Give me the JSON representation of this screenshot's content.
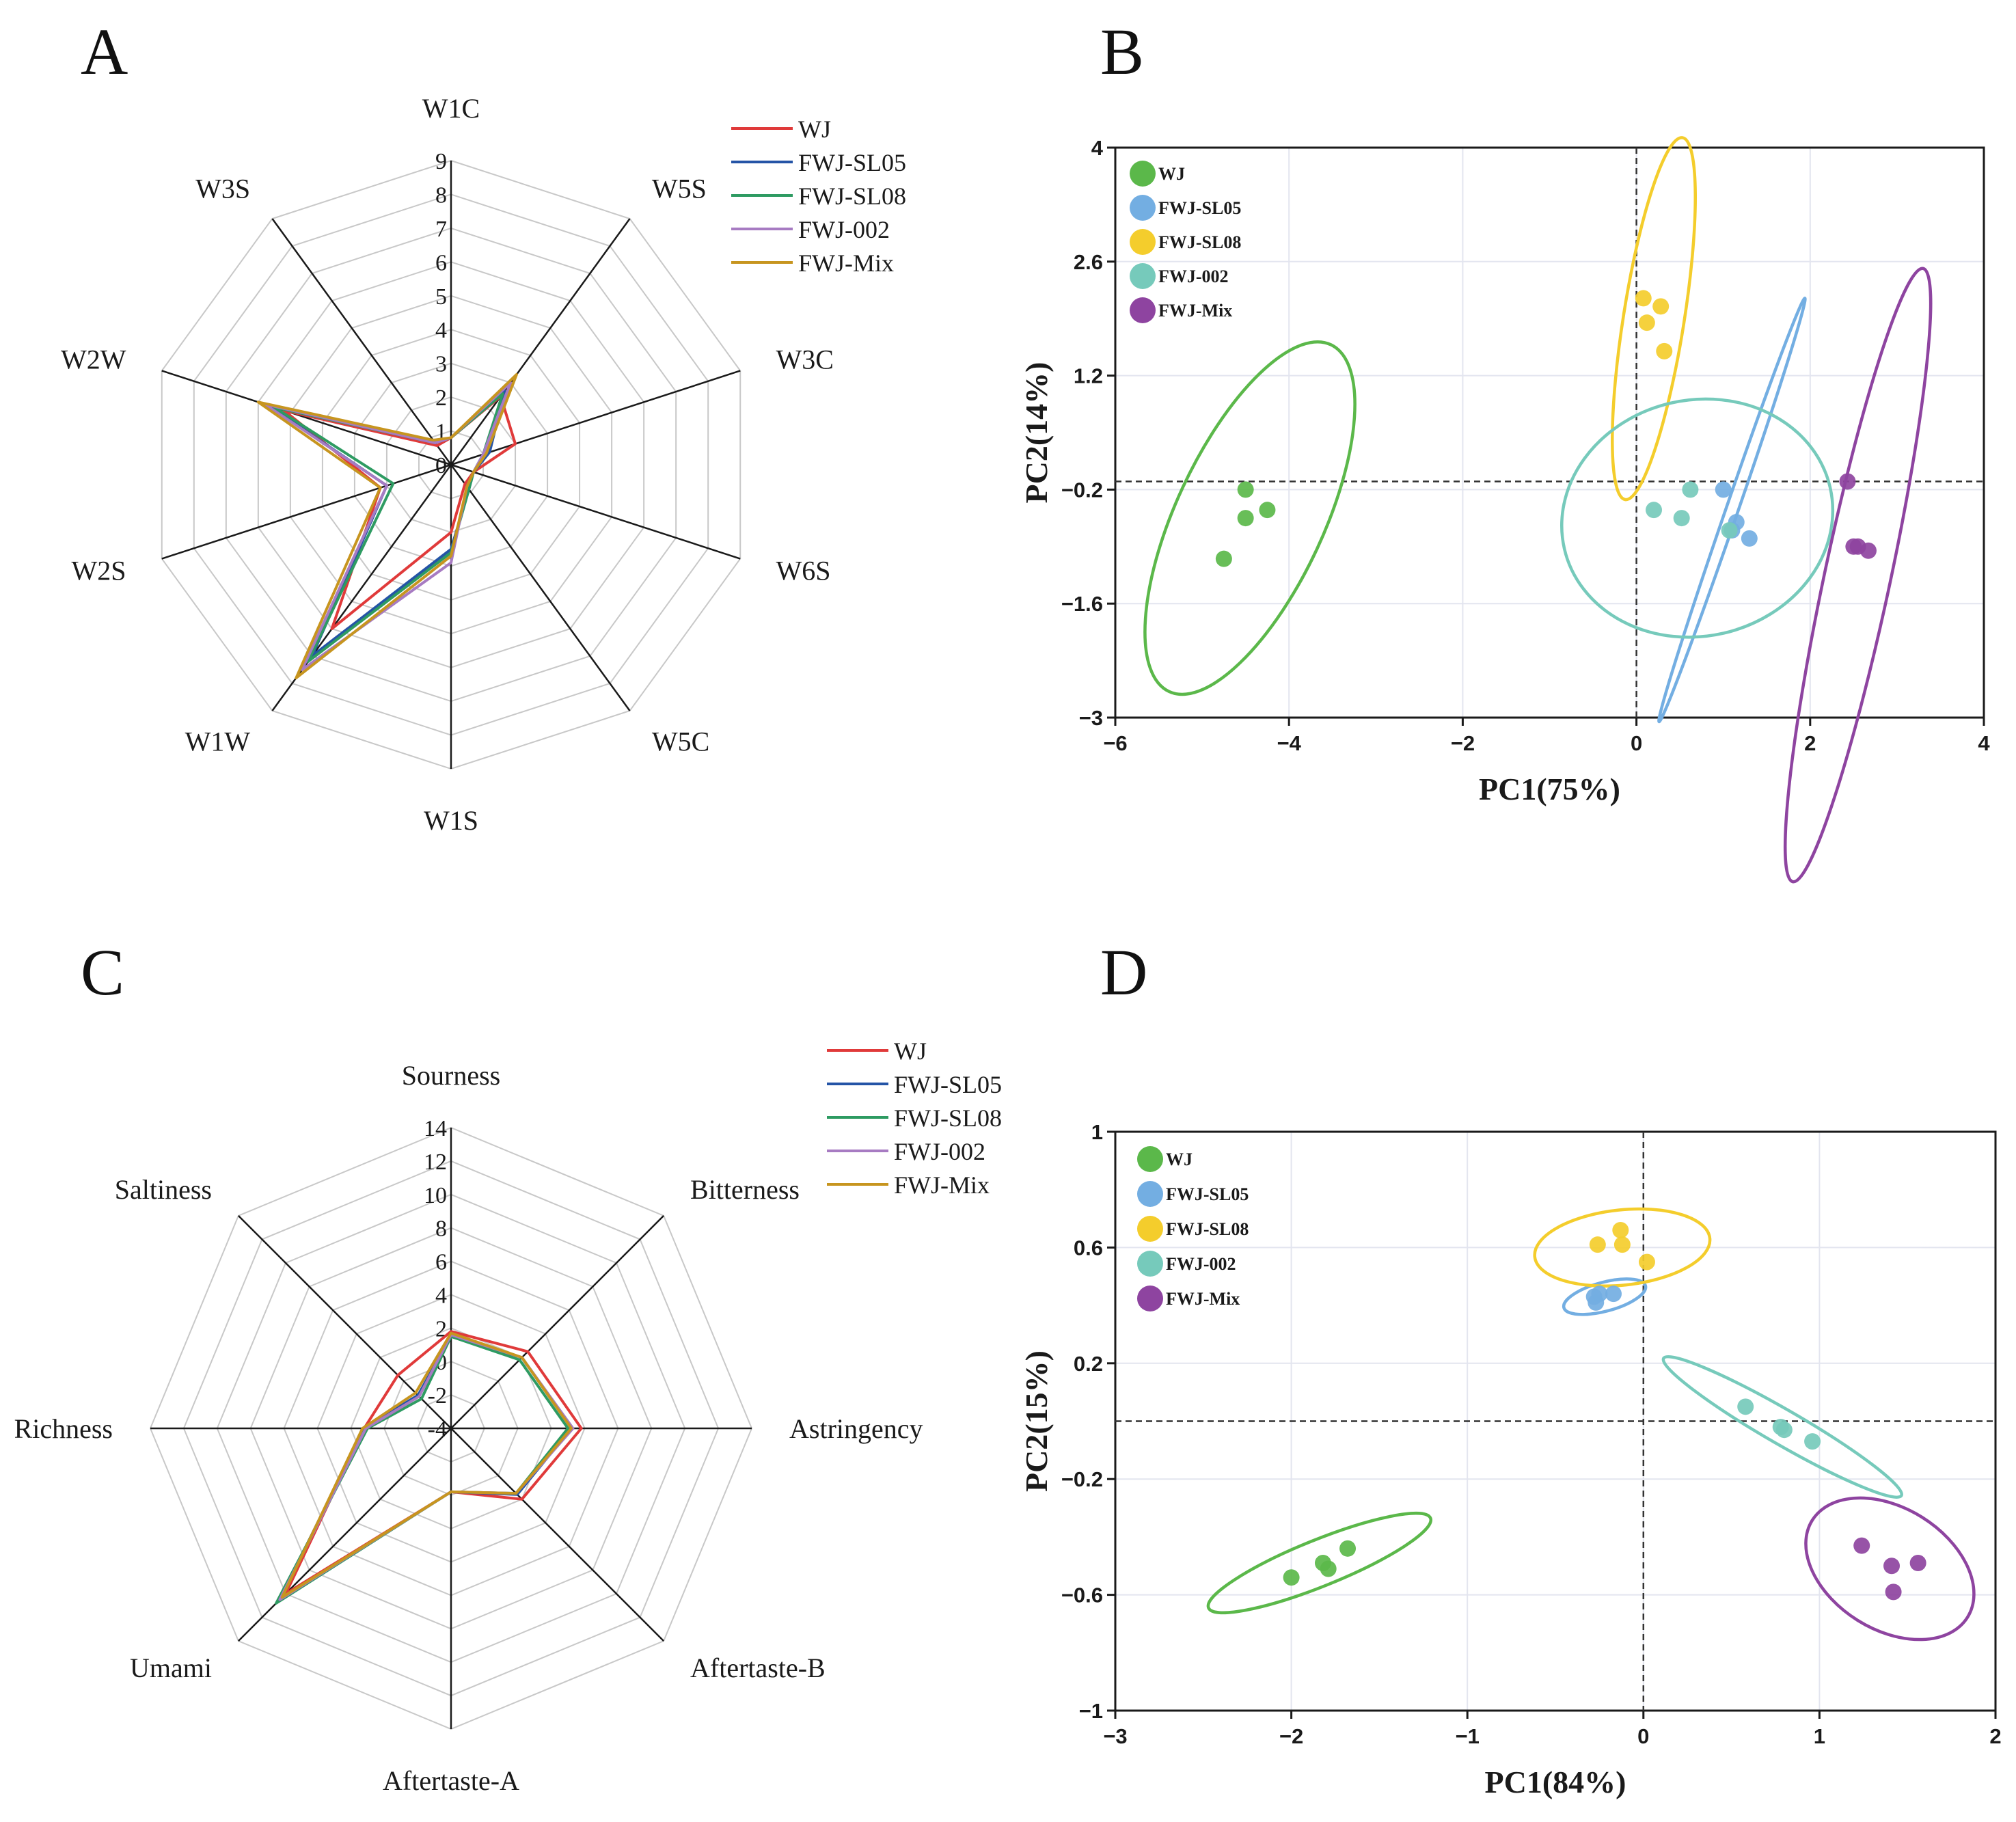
{
  "colors": {
    "WJ": "#e03a3a",
    "FWJ-SL05": "#2454a6",
    "FWJ-SL08": "#2e9b62",
    "FWJ-002": "#a77bc2",
    "FWJ-Mix": "#c7951f",
    "pca_WJ": "#5bb84a",
    "pca_FWJ-SL05": "#73aee2",
    "pca_FWJ-SL08": "#f4cd2c",
    "pca_FWJ-002": "#76cabb",
    "pca_FWJ-Mix": "#8e44a0"
  },
  "chart_data": [
    {
      "panel": "A",
      "type": "radar",
      "title": "A",
      "axes": [
        "W1C",
        "W5S",
        "W3C",
        "W6S",
        "W5C",
        "W1S",
        "W1W",
        "W2S",
        "W2W",
        "W3S"
      ],
      "rmax": 9,
      "ticks": [
        0,
        1,
        2,
        3,
        4,
        5,
        6,
        7,
        8,
        9
      ],
      "series": [
        {
          "name": "WJ",
          "values": [
            0.8,
            2.5,
            2.0,
            0.7,
            0.7,
            2.0,
            6.0,
            2.2,
            5.2,
            0.7
          ]
        },
        {
          "name": "FWJ-SL05",
          "values": [
            0.8,
            2.7,
            1.2,
            0.7,
            0.9,
            2.5,
            7.0,
            2.0,
            5.7,
            0.8
          ]
        },
        {
          "name": "FWJ-SL08",
          "values": [
            0.8,
            2.6,
            1.0,
            0.7,
            0.9,
            2.6,
            7.2,
            1.8,
            5.5,
            0.8
          ]
        },
        {
          "name": "FWJ-002",
          "values": [
            0.8,
            3.0,
            1.0,
            0.7,
            0.8,
            2.9,
            7.5,
            2.0,
            5.8,
            0.8
          ]
        },
        {
          "name": "FWJ-Mix",
          "values": [
            0.8,
            3.3,
            1.1,
            0.7,
            0.8,
            2.7,
            7.8,
            2.2,
            6.0,
            0.9
          ]
        }
      ]
    },
    {
      "panel": "B",
      "type": "scatter",
      "title": "B",
      "xlabel": "PC1(75%)",
      "ylabel": "PC2(14%)",
      "xlim": [
        -6,
        4
      ],
      "ylim": [
        -3,
        4
      ],
      "xticks": [
        -6,
        -4,
        -2,
        0,
        2,
        4
      ],
      "yticks": [
        -3,
        -1.6,
        -0.2,
        1.2,
        2.6,
        4
      ],
      "xtick_labels": [
        "−6",
        "−4",
        "−2",
        "0",
        "2",
        "4"
      ],
      "ytick_labels": [
        "−3",
        "−1.6",
        "−0.2",
        "1.2",
        "2.6",
        "4"
      ],
      "refline": {
        "x": 0,
        "y": -0.1
      },
      "series": [
        {
          "name": "WJ",
          "points": [
            [
              -4.5,
              -0.2
            ],
            [
              -4.25,
              -0.45
            ],
            [
              -4.5,
              -0.55
            ],
            [
              -4.75,
              -1.05
            ]
          ],
          "ellipse": {
            "cx": -4.45,
            "cy": -0.55,
            "rx": 0.85,
            "ry": 2.35,
            "angle": 25
          }
        },
        {
          "name": "FWJ-SL05",
          "points": [
            [
              1.0,
              -0.2
            ],
            [
              1.15,
              -0.6
            ],
            [
              1.3,
              -0.8
            ],
            [
              1.1,
              -0.7
            ]
          ],
          "ellipse": {
            "cx": 1.1,
            "cy": -0.45,
            "rx": 0.07,
            "ry": 2.75,
            "angle": 19
          }
        },
        {
          "name": "FWJ-SL08",
          "points": [
            [
              0.08,
              2.15
            ],
            [
              0.28,
              2.05
            ],
            [
              0.12,
              1.85
            ],
            [
              0.32,
              1.5
            ]
          ],
          "ellipse": {
            "cx": 0.2,
            "cy": 1.9,
            "rx": 0.35,
            "ry": 2.25,
            "angle": 9
          }
        },
        {
          "name": "FWJ-002",
          "points": [
            [
              0.2,
              -0.45
            ],
            [
              0.52,
              -0.55
            ],
            [
              0.62,
              -0.2
            ],
            [
              1.07,
              -0.7
            ]
          ],
          "ellipse": {
            "cx": 0.7,
            "cy": -0.55,
            "rx": 1.57,
            "ry": 1.45,
            "angle": -13
          }
        },
        {
          "name": "FWJ-Mix",
          "points": [
            [
              2.43,
              -0.1
            ],
            [
              2.5,
              -0.9
            ],
            [
              2.55,
              -0.9
            ],
            [
              2.67,
              -0.95
            ]
          ],
          "ellipse": {
            "cx": 2.55,
            "cy": -1.25,
            "rx": 0.38,
            "ry": 3.85,
            "angle": 12
          }
        }
      ]
    },
    {
      "panel": "C",
      "type": "radar",
      "title": "C",
      "axes": [
        "Sourness",
        "Bitterness",
        "Astringency",
        "Aftertaste-B",
        "Aftertaste-A",
        "Umami",
        "Richness",
        "Saltiness"
      ],
      "rmin": -4,
      "rmax": 14,
      "ticks": [
        -4,
        -2,
        0,
        2,
        4,
        6,
        8,
        10,
        12,
        14
      ],
      "tick_labels": [
        "-4",
        "-2",
        "0",
        "2",
        "4",
        "6",
        "8",
        "10",
        "12",
        "14"
      ],
      "series": [
        {
          "name": "WJ",
          "values": [
            1.8,
            2.5,
            3.8,
            2.0,
            -0.2,
            10.0,
            1.2,
            0.5
          ]
        },
        {
          "name": "FWJ-SL05",
          "values": [
            1.5,
            2.0,
            3.2,
            1.6,
            -0.2,
            10.5,
            1.2,
            -1.2
          ]
        },
        {
          "name": "FWJ-SL08",
          "values": [
            1.5,
            1.8,
            3.0,
            1.5,
            -0.2,
            10.8,
            1.0,
            -1.5
          ]
        },
        {
          "name": "FWJ-002",
          "values": [
            1.6,
            2.0,
            3.3,
            1.5,
            -0.2,
            10.5,
            1.1,
            -1.3
          ]
        },
        {
          "name": "FWJ-Mix",
          "values": [
            1.7,
            2.0,
            3.2,
            1.5,
            -0.2,
            10.3,
            1.3,
            -1.0
          ]
        }
      ]
    },
    {
      "panel": "D",
      "type": "scatter",
      "title": "D",
      "xlabel": "PC1(84%)",
      "ylabel": "PC2(15%)",
      "xlim": [
        -3,
        2
      ],
      "ylim": [
        -1,
        1
      ],
      "xticks": [
        -3,
        -2,
        -1,
        0,
        1,
        2
      ],
      "yticks": [
        -1,
        -0.6,
        -0.2,
        0.2,
        0.6,
        1
      ],
      "xtick_labels": [
        "−3",
        "−2",
        "−1",
        "0",
        "1",
        "2"
      ],
      "ytick_labels": [
        "−1",
        "−0.6",
        "−0.2",
        "0.2",
        "0.6",
        "1"
      ],
      "refline": {
        "x": 0,
        "y": 0
      },
      "series": [
        {
          "name": "WJ",
          "points": [
            [
              -2.0,
              -0.54
            ],
            [
              -1.82,
              -0.49
            ],
            [
              -1.79,
              -0.51
            ],
            [
              -1.68,
              -0.44
            ]
          ],
          "ellipse": {
            "cx": -1.84,
            "cy": -0.49,
            "rx": 0.68,
            "ry": 0.08,
            "angle": -22
          }
        },
        {
          "name": "FWJ-SL05",
          "points": [
            [
              -0.28,
              0.43
            ],
            [
              -0.25,
              0.44
            ],
            [
              -0.17,
              0.44
            ],
            [
              -0.27,
              0.41
            ]
          ],
          "ellipse": {
            "cx": -0.22,
            "cy": 0.43,
            "rx": 0.24,
            "ry": 0.05,
            "angle": -15
          }
        },
        {
          "name": "FWJ-SL08",
          "points": [
            [
              -0.13,
              0.66
            ],
            [
              -0.12,
              0.61
            ],
            [
              -0.26,
              0.61
            ],
            [
              0.02,
              0.55
            ]
          ],
          "ellipse": {
            "cx": -0.12,
            "cy": 0.6,
            "rx": 0.5,
            "ry": 0.13,
            "angle": -6
          }
        },
        {
          "name": "FWJ-002",
          "points": [
            [
              0.58,
              0.05
            ],
            [
              0.78,
              -0.02
            ],
            [
              0.8,
              -0.03
            ],
            [
              0.96,
              -0.07
            ]
          ],
          "ellipse": {
            "cx": 0.79,
            "cy": -0.02,
            "rx": 0.78,
            "ry": 0.06,
            "angle": 30
          }
        },
        {
          "name": "FWJ-Mix",
          "points": [
            [
              1.24,
              -0.43
            ],
            [
              1.41,
              -0.5
            ],
            [
              1.56,
              -0.49
            ],
            [
              1.42,
              -0.59
            ]
          ],
          "ellipse": {
            "cx": 1.4,
            "cy": -0.51,
            "rx": 0.52,
            "ry": 0.21,
            "angle": 32
          }
        }
      ]
    }
  ]
}
